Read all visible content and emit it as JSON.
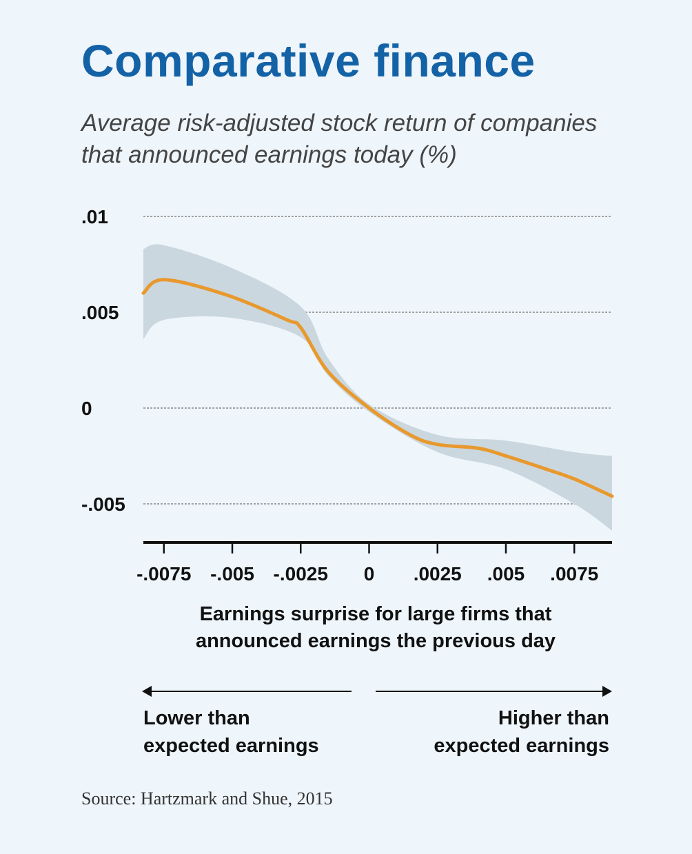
{
  "chart_data": {
    "type": "line",
    "title": "Comparative finance",
    "subtitle": "Average risk-adjusted stock return of companies that announced earnings today (%)",
    "xlabel": "Earnings surprise for large firms that announced earnings the previous day",
    "ylabel": "",
    "xlim": [
      -0.00825,
      0.00888
    ],
    "ylim": [
      -0.007,
      0.01
    ],
    "yticks": [
      0.01,
      0.005,
      0,
      -0.005
    ],
    "ytick_labels": [
      ".01",
      ".005",
      "0",
      "-.005"
    ],
    "xticks": [
      -0.0075,
      -0.005,
      -0.0025,
      0,
      0.0025,
      0.005,
      0.0075
    ],
    "xtick_labels": [
      "-.0075",
      "-.005",
      "-.0025",
      "0",
      ".0025",
      ".005",
      ".0075"
    ],
    "grid": "horizontal dashed",
    "series": [
      {
        "x": [
          -0.00825,
          -0.0075,
          -0.0052,
          -0.003,
          -0.0025,
          -0.0015,
          0,
          0.0015,
          0.0025,
          0.004,
          0.005,
          0.0065,
          0.0075,
          0.00888
        ],
        "y": [
          0.006,
          0.0067,
          0.0059,
          0.0046,
          0.0042,
          0.0019,
          0,
          -0.0014,
          -0.0019,
          -0.0021,
          -0.0025,
          -0.0032,
          -0.0037,
          -0.0046
        ],
        "color": "#e8992e"
      }
    ],
    "confidence_band": {
      "x": [
        -0.00825,
        -0.0075,
        -0.005,
        -0.0025,
        -0.0015,
        0,
        0.0025,
        0.005,
        0.0075,
        0.00888
      ],
      "upper": [
        0.0083,
        0.0085,
        0.0073,
        0.0053,
        0.0026,
        0.0002,
        -0.0014,
        -0.0017,
        -0.0023,
        -0.0025
      ],
      "lower": [
        0.0036,
        0.0046,
        0.0047,
        0.0037,
        0.0017,
        -0.0002,
        -0.0023,
        -0.0032,
        -0.005,
        -0.0064
      ],
      "color": "#cbd7df"
    },
    "annotations": {
      "left_arrow": "Lower than expected earnings",
      "right_arrow": "Higher than expected earnings"
    },
    "source": "Source: Hartzmark and Shue, 2015"
  },
  "labels": {
    "lower_line1": "Lower than",
    "lower_line2": "expected earnings",
    "higher_line1": "Higher than",
    "higher_line2": "expected earnings",
    "xlabel_line1": "Earnings surprise for large firms that",
    "xlabel_line2": "announced earnings the previous day",
    "subtitle_line1": "Average risk-adjusted stock return of companies",
    "subtitle_line2": "that announced earnings today (%)"
  },
  "colors": {
    "title": "#1462a6",
    "background": "#eef5fb",
    "line": "#e8992e",
    "band": "#cbd7df"
  }
}
